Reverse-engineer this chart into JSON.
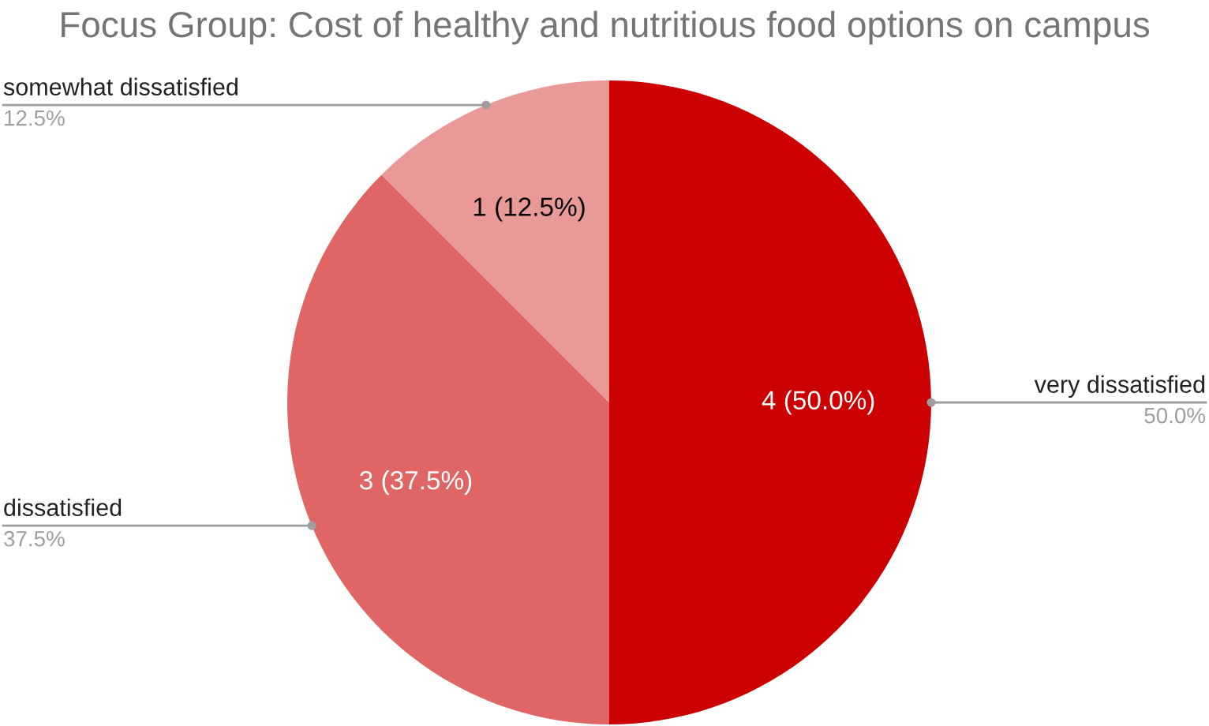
{
  "chart_data": {
    "type": "pie",
    "title": "Focus Group: Cost of healthy and nutritious food options on campus",
    "categories": [
      "very dissatisfied",
      "dissatisfied",
      "somewhat dissatisfied"
    ],
    "values": [
      4,
      3,
      1
    ],
    "colors": [
      "#cc0000",
      "#e06666",
      "#ea9999"
    ],
    "value_labels": [
      "4 (50.0%)",
      "3 (37.5%)",
      "1 (12.5%)"
    ],
    "annotations": [
      "50.0%",
      "37.5%",
      "12.5%"
    ],
    "legend": false
  }
}
